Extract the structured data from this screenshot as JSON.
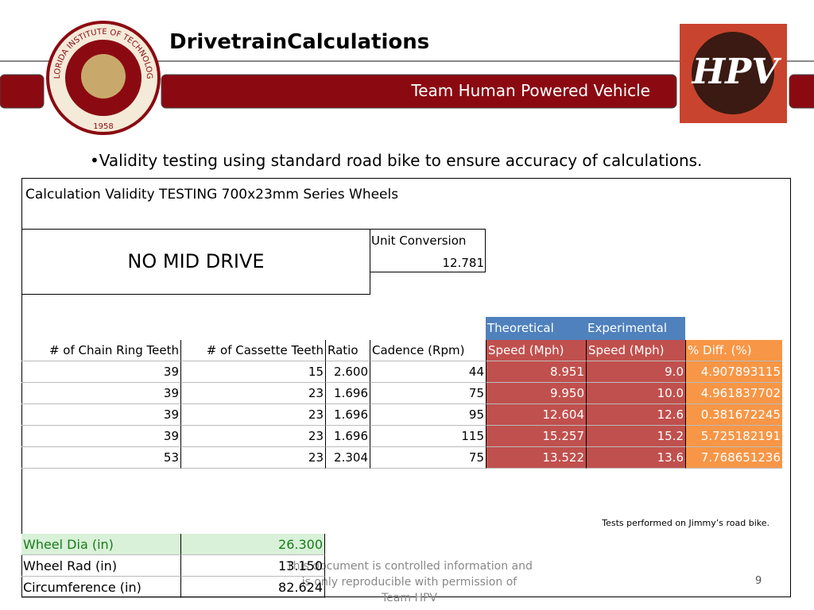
{
  "header": {
    "title": "DrivetrainCalculations",
    "subtitle": "Team Human Powered Vehicle"
  },
  "logos": {
    "seal_name": "FLORIDA INSTITUTE OF TECHNOLOGY",
    "seal_year": "1958",
    "hpv": "HPV"
  },
  "bullet": "•Validity testing using standard road bike to ensure accuracy of calculations.",
  "sheet": {
    "title": "Calculation Validity TESTING  700x23mm Series Wheels",
    "box_label": "NO MID DRIVE",
    "unit_conversion": {
      "label": "Unit Conversion",
      "value": "12.781"
    },
    "group_headers": [
      "Theoretical",
      "Experimental"
    ],
    "columns": [
      "# of Chain Ring Teeth",
      "# of Cassette Teeth",
      "Ratio",
      "Cadence (Rpm)",
      "Speed (Mph)",
      "Speed (Mph)",
      "% Diff. (%)"
    ],
    "rows": [
      [
        "39",
        "15",
        "2.600",
        "44",
        "8.951",
        "9.0",
        "4.907893115"
      ],
      [
        "39",
        "23",
        "1.696",
        "75",
        "9.950",
        "10.0",
        "4.961837702"
      ],
      [
        "39",
        "23",
        "1.696",
        "95",
        "12.604",
        "12.6",
        "0.381672245"
      ],
      [
        "39",
        "23",
        "1.696",
        "115",
        "15.257",
        "15.2",
        "5.725182191"
      ],
      [
        "53",
        "23",
        "2.304",
        "75",
        "13.522",
        "13.6",
        "7.768651236"
      ]
    ],
    "note": "Tests performed on Jimmy’s road bike.",
    "wheel_rows": [
      [
        "Wheel Dia (in)",
        "26.300"
      ],
      [
        "Wheel Rad (in)",
        "13.150"
      ],
      [
        "Circumference (in)",
        "82.624"
      ]
    ]
  },
  "footer": {
    "notice": "This document is controlled information and is only reproducible with permission of Team HPV",
    "page": "9"
  }
}
